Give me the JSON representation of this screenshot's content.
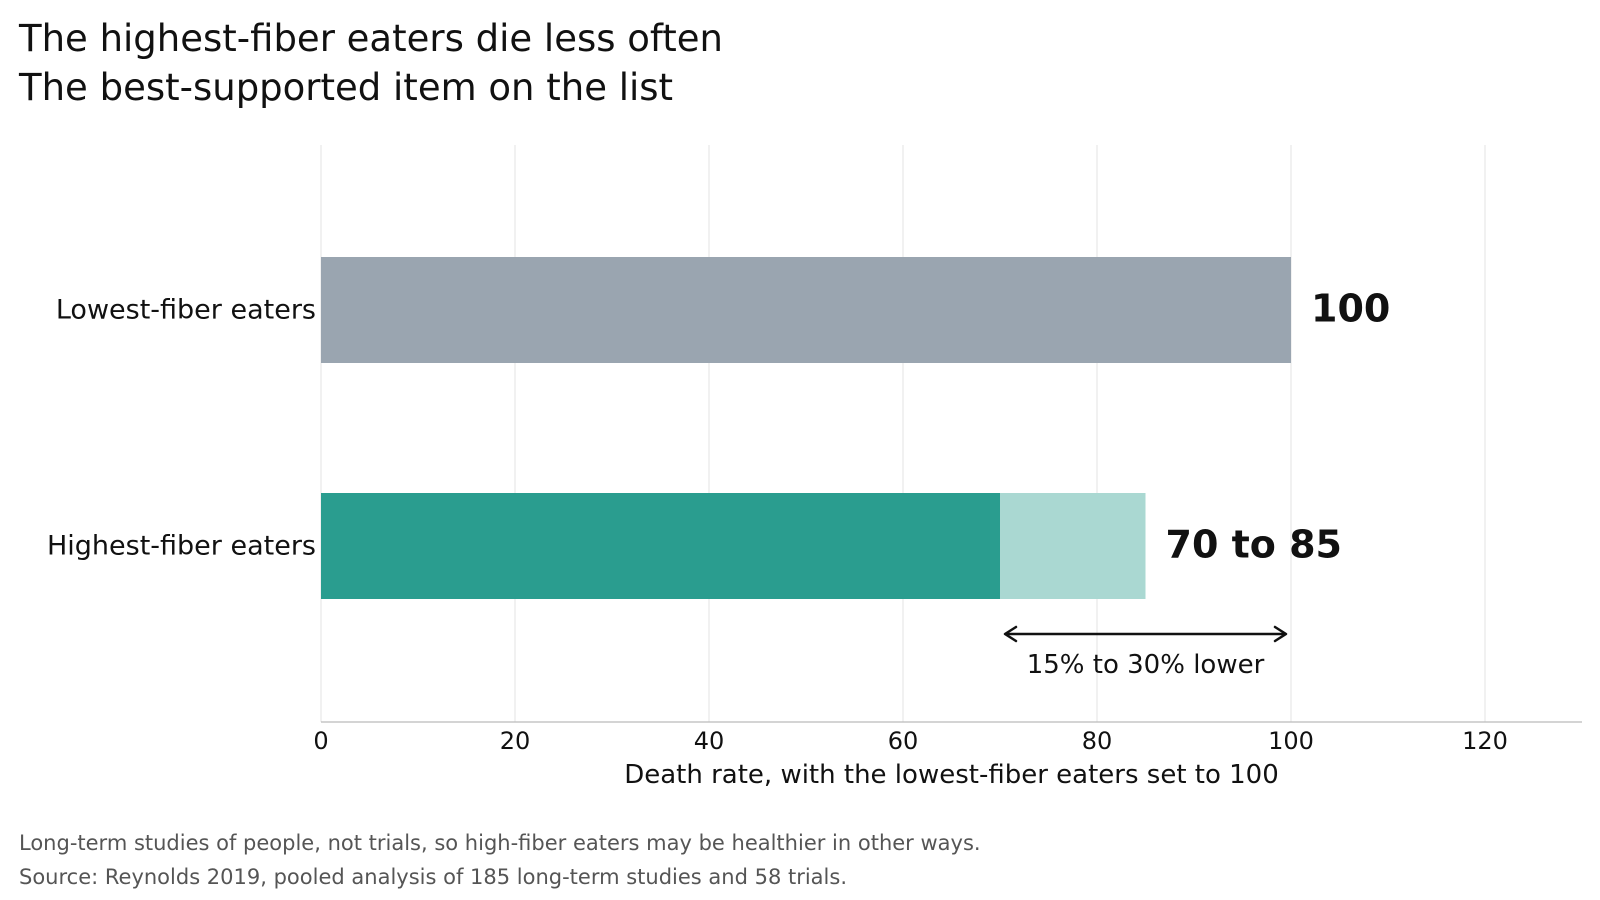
{
  "title": "The highest-fiber eaters die less often",
  "subtitle": "The best-supported item on the list",
  "notes": [
    "Long-term studies of people, not trials, so high-fiber eaters may be healthier in other ways.",
    "Source: Reynolds 2019, pooled analysis of 185 long-term studies and 58 trials."
  ],
  "colors": {
    "reference_bar": "#9aa5b0",
    "range_solid": "#2a9d8f",
    "range_light": "#aad8d2",
    "grid": "#e3e3e3",
    "axis": "#bbbbbb",
    "text": "#111111",
    "notes": "#555555"
  },
  "chart_data": {
    "type": "bar",
    "orientation": "horizontal",
    "categories": [
      "Lowest-fiber eaters",
      "Highest-fiber eaters"
    ],
    "bars": [
      {
        "category": "Lowest-fiber eaters",
        "value": 100,
        "label": "100"
      },
      {
        "category": "Highest-fiber eaters",
        "low": 70,
        "high": 85,
        "label": "70 to 85"
      }
    ],
    "xlabel": "Death rate, with the lowest-fiber eaters set to 100",
    "xlim": [
      0,
      130
    ],
    "xticks": [
      0,
      20,
      40,
      60,
      80,
      100,
      120
    ],
    "grid": true,
    "annotation": {
      "text": "15% to 30% lower",
      "from": 70,
      "to": 100
    }
  }
}
